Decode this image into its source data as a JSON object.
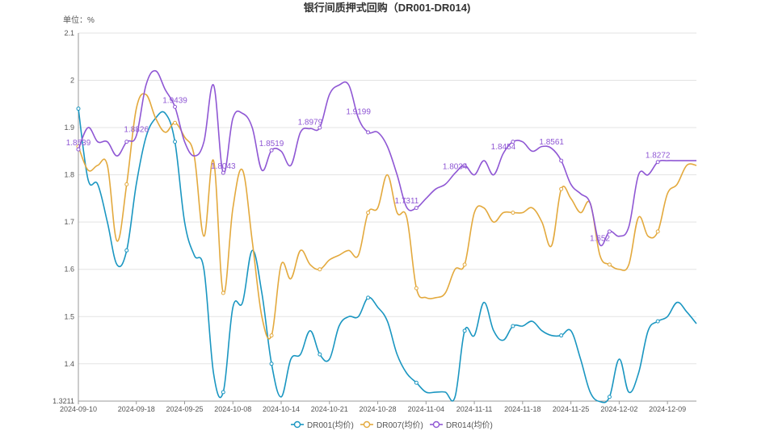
{
  "chart_data": {
    "type": "line",
    "title": "银行间质押式回购（DR001-DR014)",
    "unit_label": "单位：%",
    "ylim": [
      1.3211,
      2.1
    ],
    "yticks": [
      "1.3211",
      "1.4",
      "1.5",
      "1.6",
      "1.7",
      "1.8",
      "1.9",
      "2",
      "2.1"
    ],
    "ytick_values": [
      1.3211,
      1.4,
      1.5,
      1.6,
      1.7,
      1.8,
      1.9,
      2.0,
      2.1
    ],
    "xlim": [
      0,
      64
    ],
    "xticks": [
      {
        "i": 0,
        "label": "2024-09-10"
      },
      {
        "i": 6,
        "label": "2024-09-18"
      },
      {
        "i": 11,
        "label": "2024-09-25"
      },
      {
        "i": 16,
        "label": "2024-10-08"
      },
      {
        "i": 21,
        "label": "2024-10-14"
      },
      {
        "i": 26,
        "label": "2024-10-21"
      },
      {
        "i": 31,
        "label": "2024-10-28"
      },
      {
        "i": 36,
        "label": "2024-11-04"
      },
      {
        "i": 41,
        "label": "2024-11-11"
      },
      {
        "i": 46,
        "label": "2024-11-18"
      },
      {
        "i": 51,
        "label": "2024-11-25"
      },
      {
        "i": 56,
        "label": "2024-12-02"
      },
      {
        "i": 61,
        "label": "2024-12-09"
      }
    ],
    "grid": true,
    "legend_position": "bottom-center",
    "series": [
      {
        "name": "DR001(均价)",
        "color": "#1a96c1",
        "values": [
          1.94,
          1.79,
          1.78,
          1.7,
          1.61,
          1.64,
          1.78,
          1.88,
          1.92,
          1.93,
          1.87,
          1.7,
          1.63,
          1.6,
          1.38,
          1.34,
          1.52,
          1.53,
          1.64,
          1.55,
          1.4,
          1.33,
          1.41,
          1.42,
          1.47,
          1.42,
          1.41,
          1.48,
          1.5,
          1.5,
          1.54,
          1.52,
          1.49,
          1.42,
          1.38,
          1.36,
          1.34,
          1.34,
          1.34,
          1.33,
          1.47,
          1.46,
          1.53,
          1.47,
          1.45,
          1.48,
          1.48,
          1.49,
          1.47,
          1.46,
          1.46,
          1.47,
          1.41,
          1.34,
          1.32,
          1.33,
          1.41,
          1.34,
          1.38,
          1.47,
          1.49,
          1.5,
          1.53,
          1.51,
          1.485
        ]
      },
      {
        "name": "DR007(均价)",
        "color": "#e3a93d",
        "values": [
          1.86,
          1.81,
          1.82,
          1.82,
          1.66,
          1.78,
          1.94,
          1.97,
          1.92,
          1.89,
          1.91,
          1.88,
          1.84,
          1.67,
          1.83,
          1.55,
          1.73,
          1.81,
          1.66,
          1.5,
          1.46,
          1.61,
          1.58,
          1.64,
          1.61,
          1.6,
          1.62,
          1.63,
          1.64,
          1.63,
          1.72,
          1.73,
          1.8,
          1.72,
          1.71,
          1.56,
          1.54,
          1.54,
          1.55,
          1.6,
          1.61,
          1.72,
          1.73,
          1.7,
          1.72,
          1.72,
          1.72,
          1.73,
          1.7,
          1.65,
          1.77,
          1.75,
          1.72,
          1.74,
          1.63,
          1.61,
          1.6,
          1.61,
          1.71,
          1.67,
          1.68,
          1.76,
          1.78,
          1.82,
          1.82
        ]
      },
      {
        "name": "DR014(均价)",
        "color": "#8f57d4",
        "values": [
          1.8539,
          1.9,
          1.87,
          1.87,
          1.84,
          1.87,
          1.8826,
          1.99,
          2.02,
          1.98,
          1.9439,
          1.87,
          1.84,
          1.87,
          1.99,
          1.8043,
          1.92,
          1.93,
          1.9,
          1.81,
          1.8519,
          1.85,
          1.82,
          1.89,
          1.8979,
          1.9,
          1.97,
          1.99,
          1.99,
          1.9199,
          1.89,
          1.89,
          1.86,
          1.8,
          1.7311,
          1.73,
          1.75,
          1.77,
          1.78,
          1.8034,
          1.82,
          1.8,
          1.83,
          1.8,
          1.8454,
          1.87,
          1.87,
          1.85,
          1.86,
          1.8561,
          1.83,
          1.78,
          1.76,
          1.74,
          1.652,
          1.68,
          1.67,
          1.69,
          1.8,
          1.8,
          1.8272,
          1.83,
          1.83,
          1.83,
          1.83
        ]
      }
    ],
    "data_labels": [
      {
        "series": 2,
        "i": 0,
        "text": "1.8539"
      },
      {
        "series": 2,
        "i": 6,
        "text": "1.8826"
      },
      {
        "series": 2,
        "i": 10,
        "text": "1.9439"
      },
      {
        "series": 2,
        "i": 15,
        "text": "1.8043"
      },
      {
        "series": 2,
        "i": 20,
        "text": "1.8519"
      },
      {
        "series": 2,
        "i": 24,
        "text": "1.8979"
      },
      {
        "series": 2,
        "i": 29,
        "text": "1.9199"
      },
      {
        "series": 2,
        "i": 34,
        "text": "1.7311"
      },
      {
        "series": 2,
        "i": 39,
        "text": "1.8034"
      },
      {
        "series": 2,
        "i": 44,
        "text": "1.8454"
      },
      {
        "series": 2,
        "i": 49,
        "text": "1.8561"
      },
      {
        "series": 2,
        "i": 54,
        "text": "1.652"
      },
      {
        "series": 2,
        "i": 60,
        "text": "1.8272"
      }
    ]
  }
}
